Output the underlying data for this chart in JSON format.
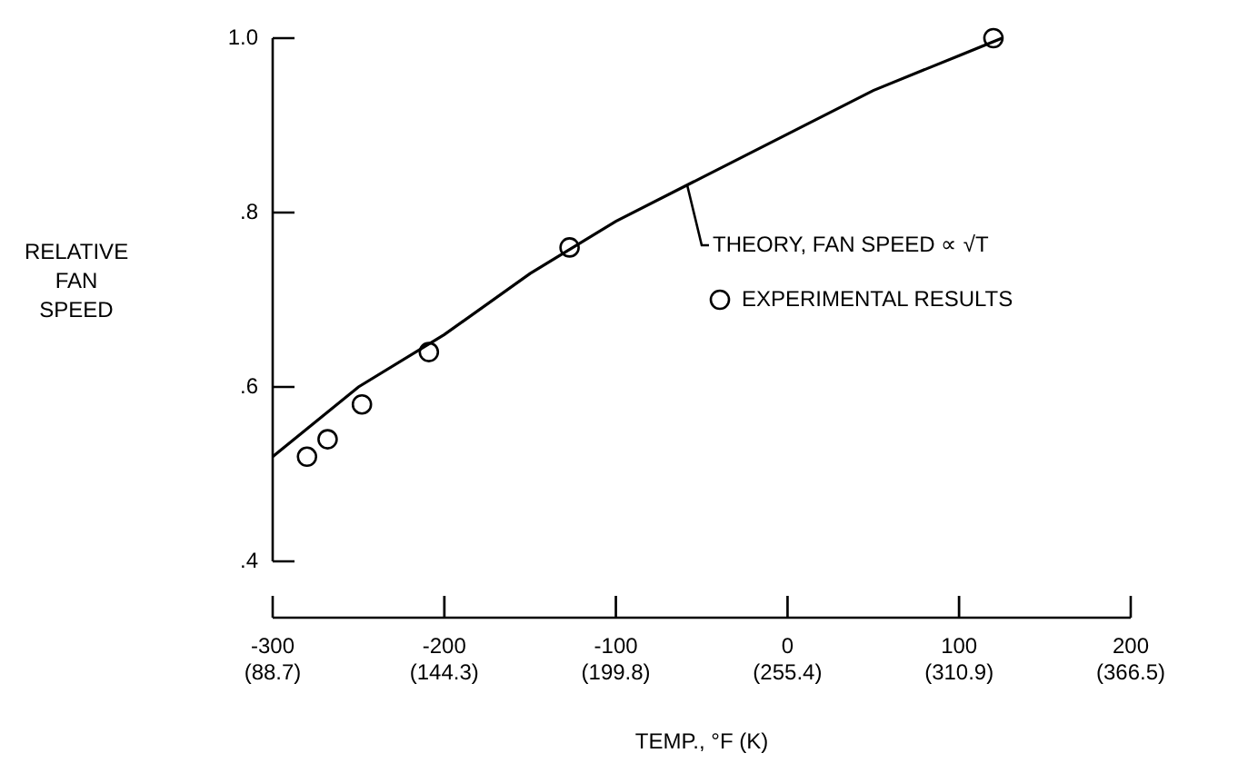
{
  "chart_data": {
    "type": "line",
    "xlabel": "TEMP., °F (K)",
    "ylabel": "RELATIVE FAN SPEED",
    "xlim": [
      -300,
      200
    ],
    "ylim": [
      0.4,
      1.0
    ],
    "xticks": [
      -300,
      -200,
      -100,
      0,
      100,
      200
    ],
    "x2lim": [
      88.7,
      366.5
    ],
    "x2ticks": [
      {
        "value": 88.7,
        "label": "(88.7)"
      },
      {
        "value": 144.3,
        "label": "(144.3)"
      },
      {
        "value": 199.8,
        "label": "(199.8)"
      },
      {
        "value": 255.4,
        "label": "(255.4)"
      },
      {
        "value": 310.9,
        "label": "(310.9)"
      },
      {
        "value": 366.5,
        "label": "(366.5)"
      }
    ],
    "yticks": [
      {
        "value": 0.4,
        "label": ".4"
      },
      {
        "value": 0.6,
        "label": ".6"
      },
      {
        "value": 0.8,
        "label": ".8"
      },
      {
        "value": 1.0,
        "label": "1.0"
      }
    ],
    "grid": false,
    "legend": "right",
    "series": [
      {
        "name": "THEORY, FAN SPEED ∝ √T",
        "color": "#000000",
        "marker": "none",
        "line_style": "solid",
        "x": [
          -300,
          -250,
          -200,
          -150,
          -100,
          -50,
          0,
          50,
          100,
          125
        ],
        "values": [
          0.52,
          0.6,
          0.66,
          0.73,
          0.79,
          0.84,
          0.89,
          0.94,
          0.98,
          1.0
        ]
      },
      {
        "name": "EXPERIMENTAL RESULTS",
        "type": "scatter",
        "color": "#000000",
        "marker": "circle",
        "x": [
          -280,
          -268,
          -248,
          -209,
          -127,
          120
        ],
        "values": [
          0.52,
          0.54,
          0.58,
          0.64,
          0.76,
          1.0
        ]
      }
    ]
  }
}
